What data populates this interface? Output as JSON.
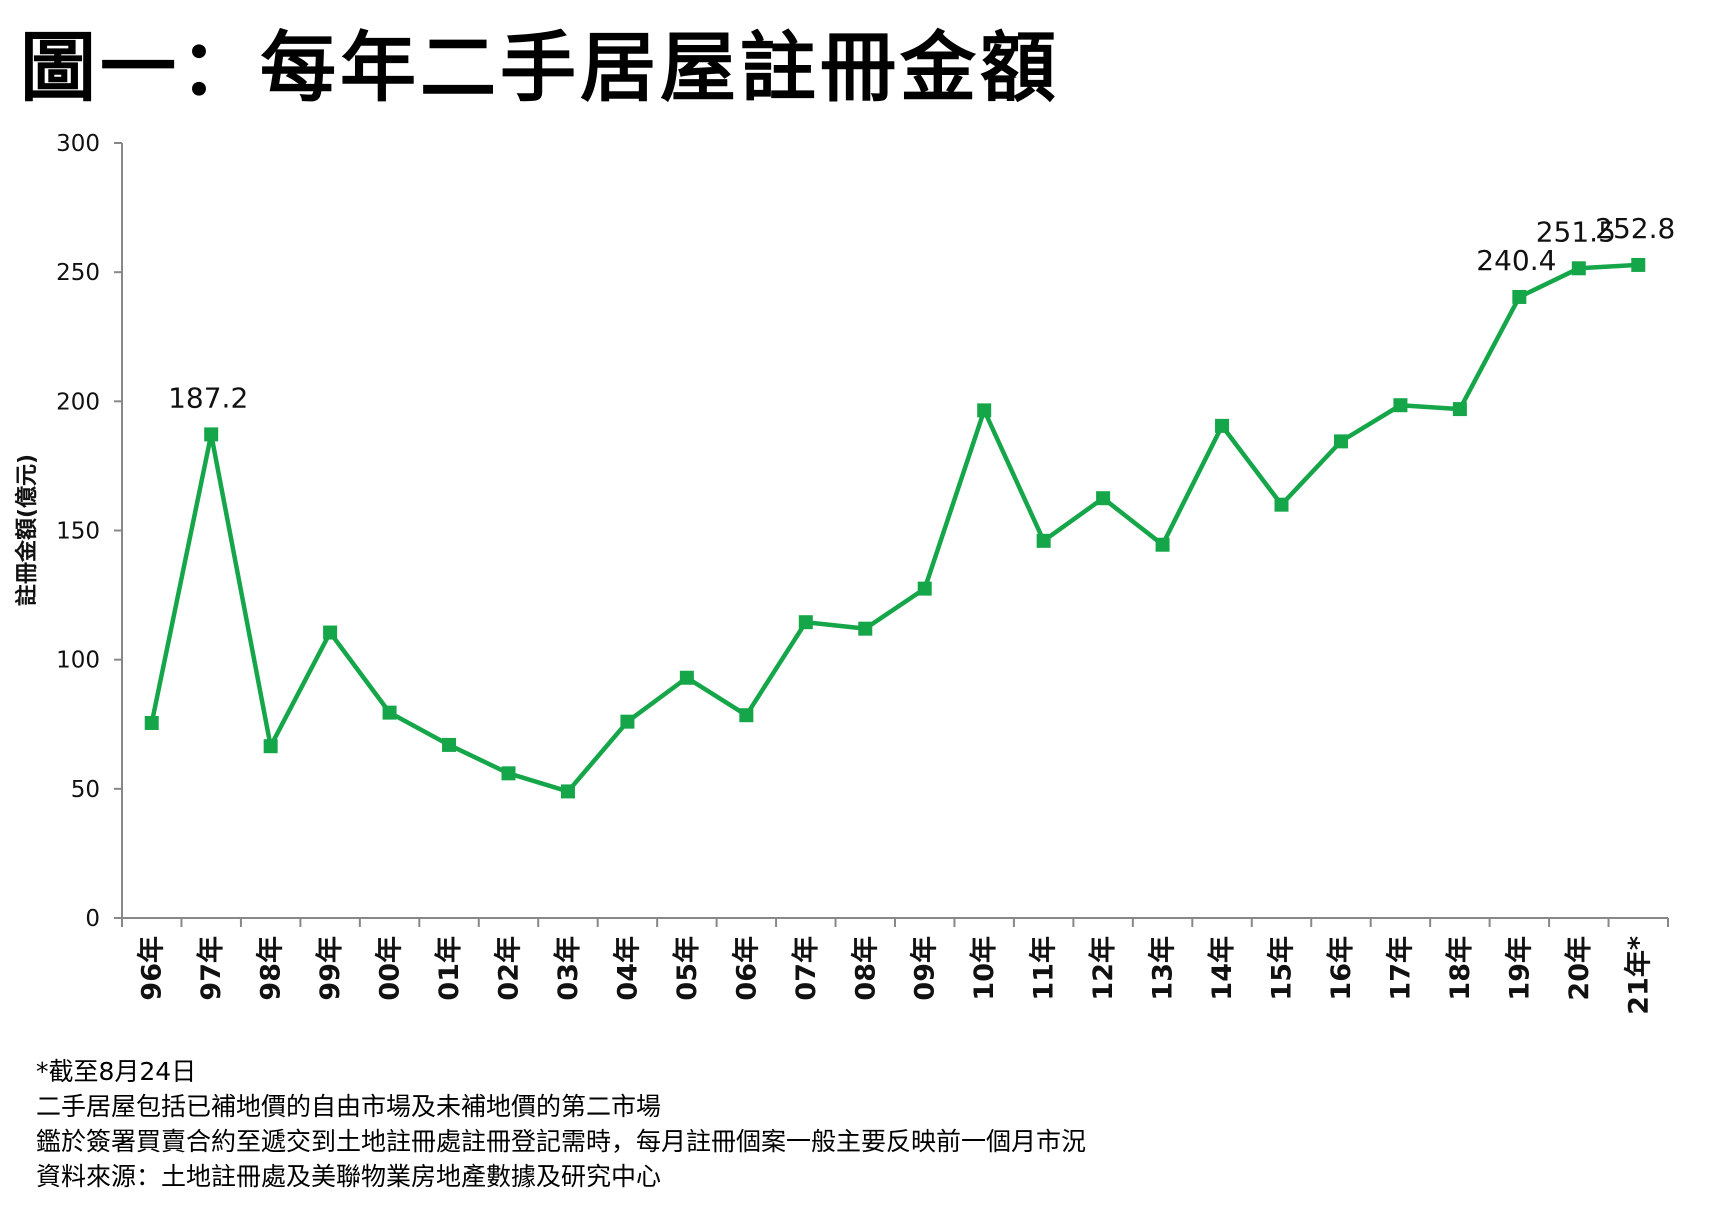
{
  "title": "圖一：每年二手居屋註冊金額",
  "chart_data": {
    "type": "line",
    "title": "圖一：每年二手居屋註冊金額",
    "xlabel": "",
    "ylabel": "註冊金額(億元)",
    "ylim": [
      0,
      300
    ],
    "yticks": [
      0,
      50,
      100,
      150,
      200,
      250,
      300
    ],
    "grid": false,
    "categories": [
      "96年",
      "97年",
      "98年",
      "99年",
      "00年",
      "01年",
      "02年",
      "03年",
      "04年",
      "05年",
      "06年",
      "07年",
      "08年",
      "09年",
      "10年",
      "11年",
      "12年",
      "13年",
      "14年",
      "15年",
      "16年",
      "17年",
      "18年",
      "19年",
      "20年",
      "21年*"
    ],
    "series": [
      {
        "values": [
          75.5,
          187.2,
          66.5,
          110.5,
          79.5,
          67.0,
          56.0,
          49.0,
          76.0,
          93.0,
          78.5,
          114.5,
          112.0,
          127.5,
          196.5,
          146.0,
          162.5,
          144.5,
          190.5,
          160.0,
          184.5,
          198.5,
          197.0,
          240.4,
          251.5,
          252.8
        ],
        "color": "#16A64A"
      }
    ],
    "data_labels": [
      {
        "index": 1,
        "text": "187.2"
      },
      {
        "index": 23,
        "text": "240.4"
      },
      {
        "index": 24,
        "text": "251.5"
      },
      {
        "index": 25,
        "text": "252.8"
      }
    ]
  },
  "notes": [
    "*截至8月24日",
    "二手居屋包括已補地價的自由市場及未補地價的第二市場",
    "鑑於簽署買賣合約至遞交到土地註冊處註冊登記需時，每月註冊個案一般主要反映前一個月市況",
    "資料來源：土地註冊處及美聯物業房地產數據及研究中心"
  ]
}
